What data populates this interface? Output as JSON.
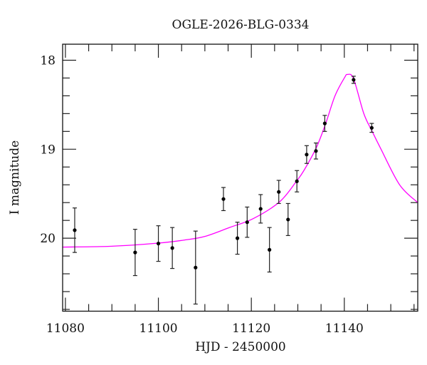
{
  "chart_data": {
    "type": "scatter",
    "title": "OGLE-2026-BLG-0334",
    "xlabel": "HJD - 2450000",
    "ylabel": "I magnitude",
    "xlim": [
      11079.4,
      11155.8
    ],
    "ylim": [
      20.82,
      17.82
    ],
    "y_inverted": true,
    "x_ticks": [
      11080,
      11100,
      11120,
      11140
    ],
    "x_minor_step": 5,
    "y_ticks": [
      18,
      19,
      20
    ],
    "y_minor_step": 0.2,
    "grid": false,
    "colors": {
      "points": "#000000",
      "model": "#ff00ff"
    },
    "points": [
      {
        "x": 11082.0,
        "y": 19.91,
        "err": 0.25
      },
      {
        "x": 11095.0,
        "y": 20.16,
        "err": 0.26
      },
      {
        "x": 11100.0,
        "y": 20.06,
        "err": 0.2
      },
      {
        "x": 11103.0,
        "y": 20.11,
        "err": 0.23
      },
      {
        "x": 11108.0,
        "y": 20.33,
        "err": 0.41
      },
      {
        "x": 11114.0,
        "y": 19.56,
        "err": 0.13
      },
      {
        "x": 11117.0,
        "y": 20.0,
        "err": 0.18
      },
      {
        "x": 11119.1,
        "y": 19.82,
        "err": 0.17
      },
      {
        "x": 11122.0,
        "y": 19.67,
        "err": 0.16
      },
      {
        "x": 11123.9,
        "y": 20.13,
        "err": 0.25
      },
      {
        "x": 11125.9,
        "y": 19.48,
        "err": 0.13
      },
      {
        "x": 11127.9,
        "y": 19.79,
        "err": 0.18
      },
      {
        "x": 11129.8,
        "y": 19.36,
        "err": 0.12
      },
      {
        "x": 11131.9,
        "y": 19.06,
        "err": 0.1
      },
      {
        "x": 11133.9,
        "y": 19.02,
        "err": 0.09
      },
      {
        "x": 11135.8,
        "y": 18.71,
        "err": 0.09
      },
      {
        "x": 11142.0,
        "y": 18.22,
        "err": 0.04
      },
      {
        "x": 11145.9,
        "y": 18.76,
        "err": 0.05
      }
    ],
    "model_curve": {
      "x": [
        11079.4,
        11090,
        11100,
        11105.7,
        11110,
        11115.3,
        11120.4,
        11126.1,
        11129.7,
        11131.3,
        11134,
        11136,
        11138,
        11140,
        11140.7,
        11142,
        11144.2,
        11146,
        11147.9,
        11151.9,
        11155.8
      ],
      "y": [
        20.1,
        20.09,
        20.055,
        20.02,
        19.98,
        19.88,
        19.78,
        19.59,
        19.36,
        19.24,
        18.98,
        18.71,
        18.4,
        18.2,
        18.16,
        18.21,
        18.6,
        18.8,
        19.0,
        19.4,
        19.6
      ]
    }
  }
}
